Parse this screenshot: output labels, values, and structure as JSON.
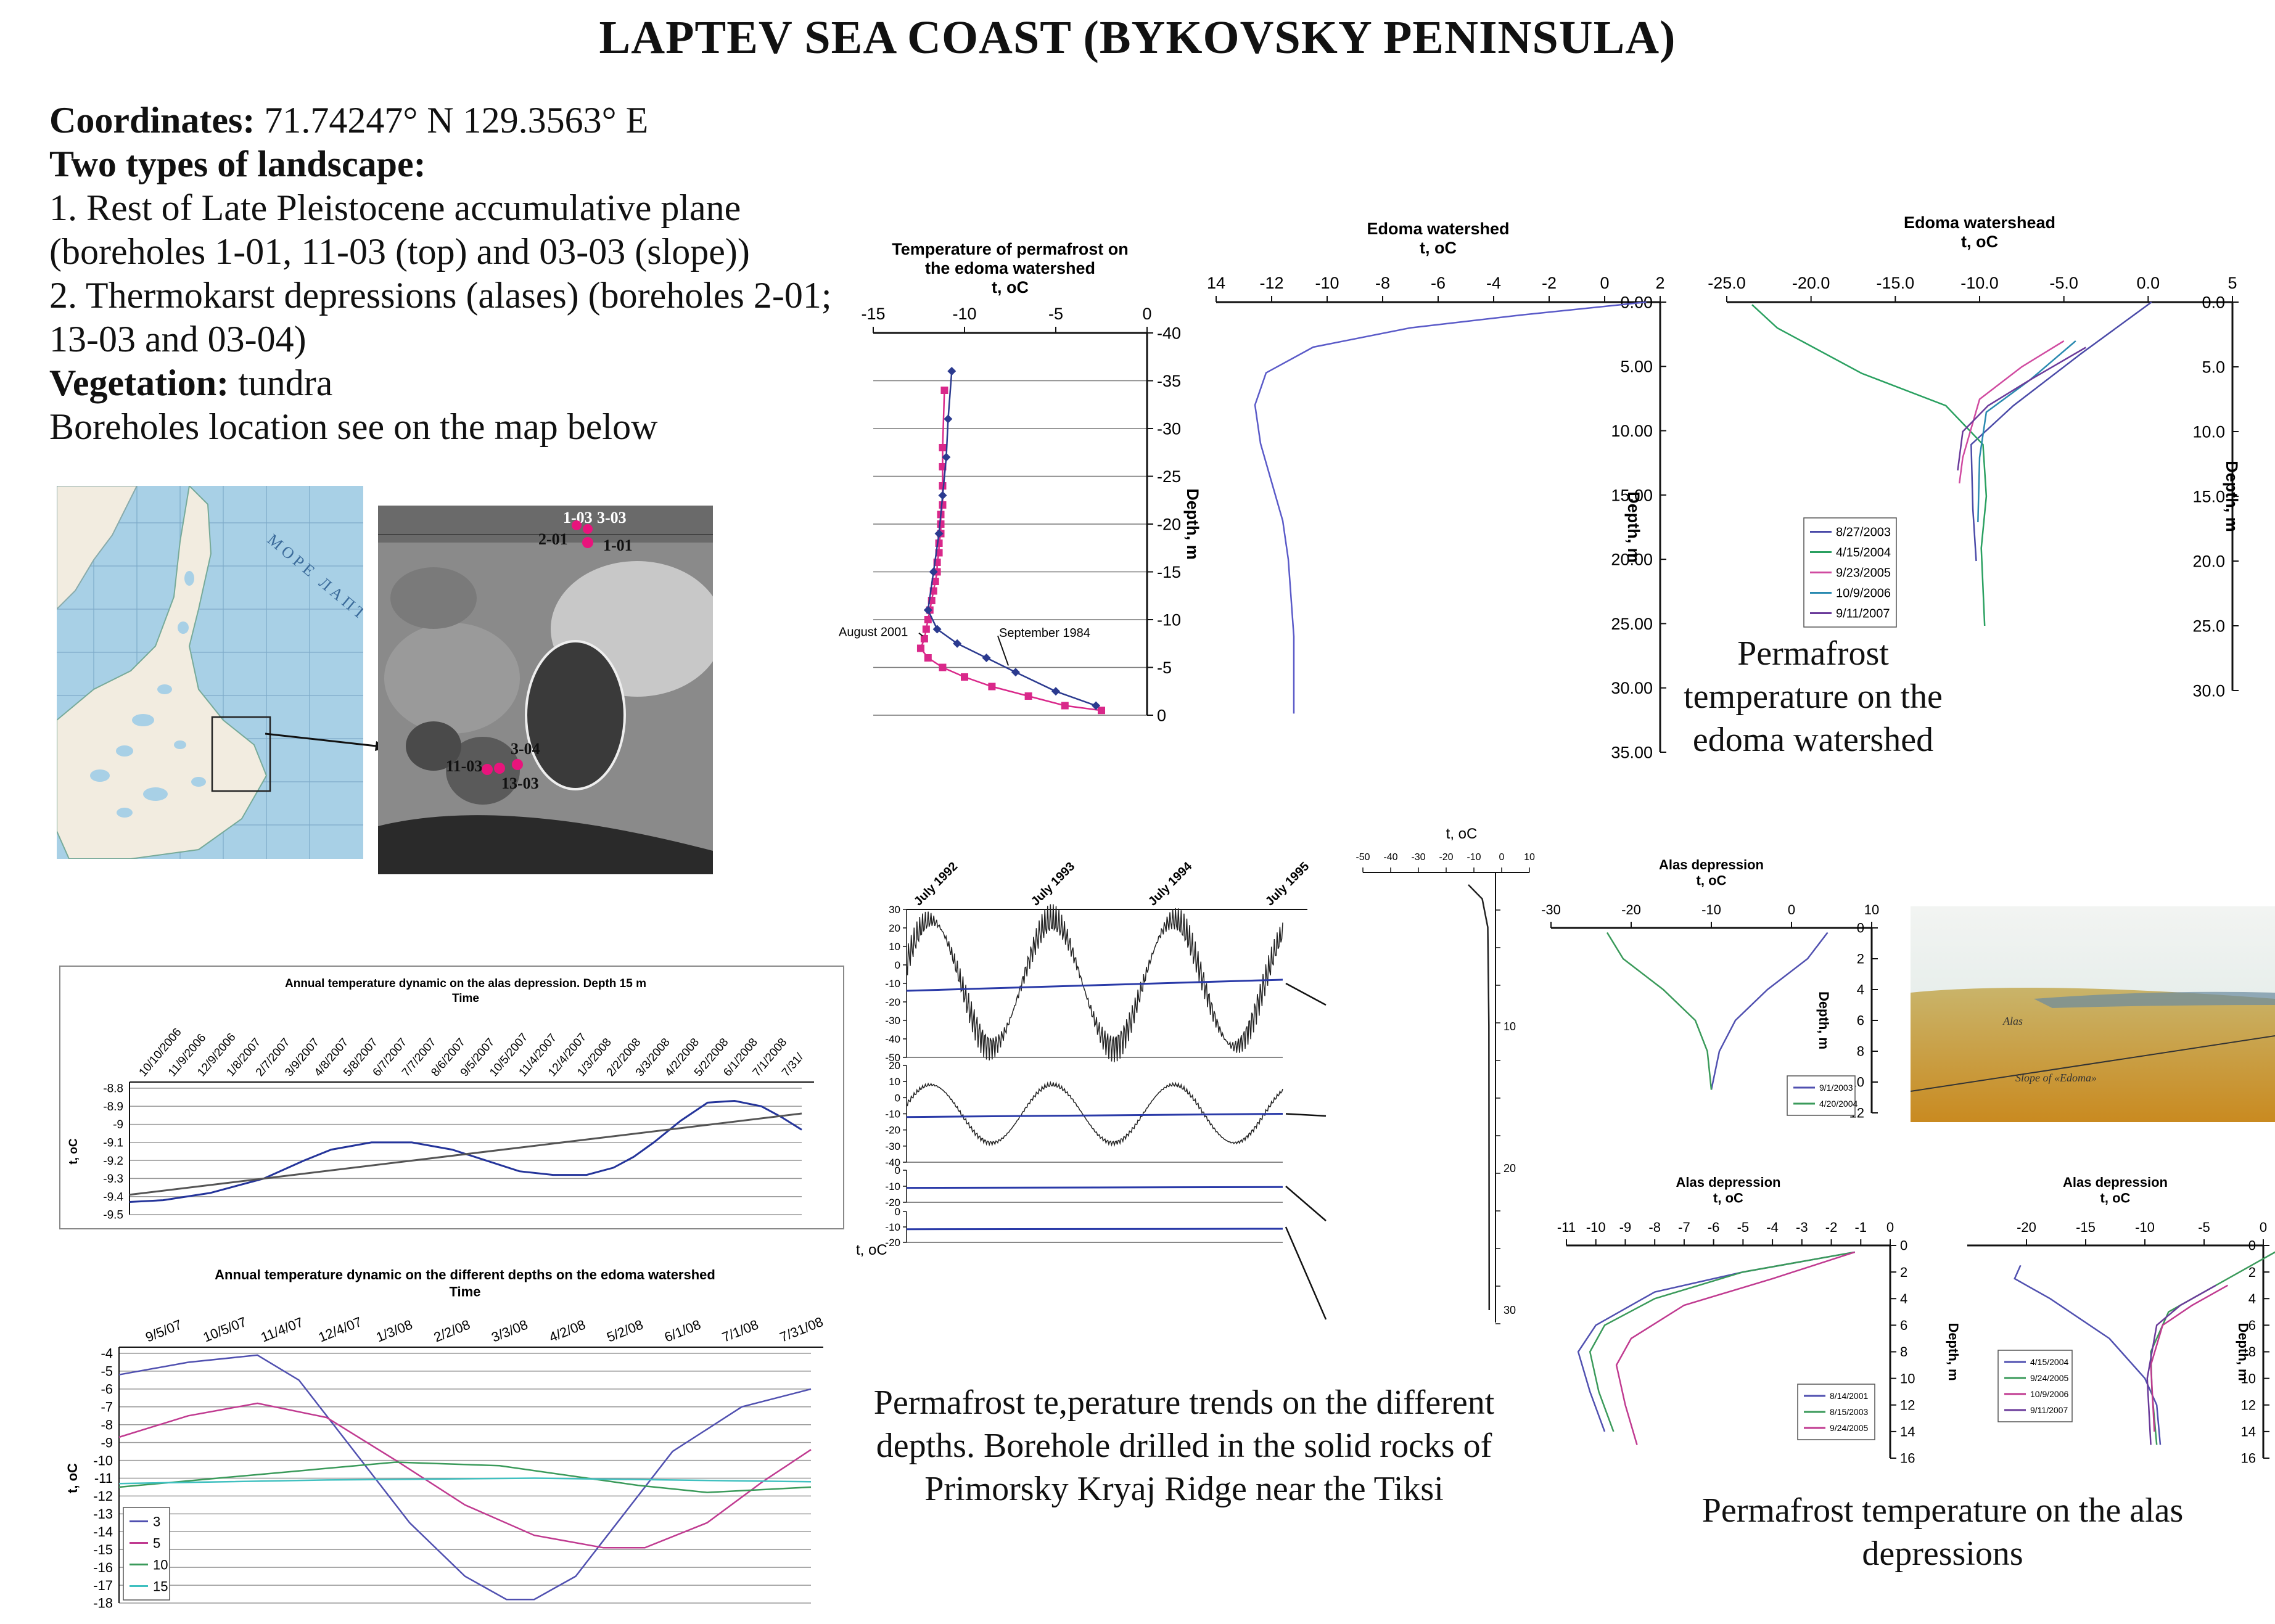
{
  "title": "LAPTEV SEA COAST (BYKOVSKY PENINSULA)",
  "info": {
    "coordinates_label": "Coordinates:",
    "coordinates_value": " 71.74247° N 129.3563° E",
    "landscape_label": "Two types of landscape:",
    "landscape_item_1": "1. Rest of Late Pleistocene accumulative plane (boreholes 1-01, 11-03 (top) and 03-03 (slope))",
    "landscape_item_2": "2. Thermokarst depressions (alases) (boreholes 2-01; 13-03 and 03-04)",
    "vegetation_label": "Vegetation:",
    "vegetation_value": " tundra",
    "boreholes_note": "Boreholes location see on the map below"
  },
  "map": {
    "sea_label": "МОРЕ ЛАПТ",
    "points": [
      "2-01",
      "1-01",
      "1-03",
      "3-03",
      "11-03",
      "3-04",
      "13-03"
    ],
    "colors": {
      "sea": "#a8d0e6",
      "land": "#f2ece0",
      "point": "#e8147c"
    }
  },
  "captions": {
    "edoma": "Permafrost temperature on the edoma watershed",
    "trends": "Permafrost te,perature trends on the different depths. Borehole drilled in the solid rocks of Primorsky Kryaj Ridge near the Tiksi",
    "alas": "Permafrost temperature on the alas depressions"
  },
  "photo": {
    "label_alas": "Alas",
    "label_slope": "Slope of «Edoma»"
  },
  "chart_data": [
    {
      "id": "c1",
      "type": "line",
      "title": "Temperature of permafrost on the edoma watershed",
      "xlabel": "t, oC",
      "ylabel": "Depth, m",
      "xlim": [
        -15,
        0
      ],
      "ylim": [
        -40,
        0
      ],
      "xticks": [
        "-15",
        "-10",
        "-5",
        "0"
      ],
      "yticks": [
        "0",
        "-5",
        "-10",
        "-15",
        "-20",
        "-25",
        "-30",
        "-35",
        "-40"
      ],
      "annotations": [
        "August 2001",
        "September 1984"
      ],
      "series": [
        {
          "name": "August 2001",
          "color": "#d9288a",
          "marker": "square",
          "x": [
            -2.5,
            -4.5,
            -6.5,
            -8.5,
            -10,
            -11.2,
            -12,
            -12.4,
            -12.2,
            -12.1,
            -12,
            -11.9,
            -11.8,
            -11.7,
            -11.6,
            -11.5,
            -11.5,
            -11.4,
            -11.4,
            -11.3,
            -11.3,
            -11.3,
            -11.2,
            -11.2,
            -11.2,
            -11.2,
            -11.1
          ],
          "y": [
            -0.5,
            -1,
            -2,
            -3,
            -4,
            -5,
            -6,
            -7,
            -8,
            -9,
            -10,
            -11,
            -12,
            -13,
            -14,
            -15,
            -16,
            -17,
            -18,
            -19,
            -20,
            -21,
            -22,
            -24,
            -26,
            -28,
            -34
          ]
        },
        {
          "name": "September 1984",
          "color": "#2b3a8f",
          "marker": "diamond",
          "x": [
            -2.8,
            -5,
            -7.2,
            -8.8,
            -10.4,
            -11.5,
            -12,
            -11.7,
            -11.4,
            -11.2,
            -11,
            -10.9,
            -10.7
          ],
          "y": [
            -1,
            -2.5,
            -4.5,
            -6,
            -7.5,
            -9,
            -11,
            -15,
            -19,
            -23,
            -27,
            -31,
            -36
          ]
        }
      ]
    },
    {
      "id": "c2",
      "type": "line",
      "title": "Edoma watershed",
      "xlabel": "t, oC",
      "ylabel": "Depth, m",
      "xlim": [
        -14,
        2
      ],
      "ylim": [
        0,
        35
      ],
      "xticks": [
        "14",
        "-12",
        "-10",
        "-8",
        "-6",
        "-4",
        "-2",
        "0",
        "2"
      ],
      "yticks": [
        "0.00",
        "5.00",
        "10.00",
        "15.00",
        "20.00",
        "25.00",
        "30.00",
        "35.00"
      ],
      "series": [
        {
          "color": "#5a5ac8",
          "x": [
            1.5,
            -3,
            -7,
            -10.5,
            -12.2,
            -12.6,
            -12.4,
            -12,
            -11.6,
            -11.4,
            -11.3,
            -11.2,
            -11.2
          ],
          "y": [
            0,
            1,
            2,
            3.5,
            5.5,
            8,
            11,
            14,
            17,
            20,
            23,
            26,
            32
          ]
        }
      ]
    },
    {
      "id": "c3",
      "type": "line",
      "title": "Edoma watershead",
      "xlabel": "t, oC",
      "ylabel": "Depth, m",
      "xlim": [
        -25,
        5
      ],
      "ylim": [
        0,
        30
      ],
      "xticks": [
        "-25.0",
        "-20.0",
        "-15.0",
        "-10.0",
        "-5.0",
        "0.0",
        "5"
      ],
      "yticks": [
        "0.0",
        "5.0",
        "10.0",
        "15.0",
        "20.0",
        "25.0",
        "30.0"
      ],
      "series": [
        {
          "name": "8/27/2003",
          "color": "#4a4aa8",
          "x": [
            0.2,
            -4,
            -8,
            -10.5,
            -10.4,
            -10.2
          ],
          "y": [
            0,
            4,
            8,
            11,
            16,
            20
          ]
        },
        {
          "name": "4/15/2004",
          "color": "#2aa060",
          "x": [
            -23.5,
            -22,
            -17,
            -12,
            -9.8,
            -9.6,
            -9.9,
            -9.7
          ],
          "y": [
            0.2,
            2,
            5.5,
            8,
            11,
            15,
            19,
            25
          ]
        },
        {
          "name": "9/23/2005",
          "color": "#d04aa0",
          "x": [
            -5,
            -7.5,
            -10,
            -11,
            -11.2
          ],
          "y": [
            3,
            5,
            7.5,
            12,
            14
          ]
        },
        {
          "name": "10/9/2006",
          "color": "#2a8ab0",
          "x": [
            -4.3,
            -7,
            -9.6,
            -10,
            -10.1
          ],
          "y": [
            3,
            6,
            8.5,
            12,
            17
          ]
        },
        {
          "name": "9/11/2007",
          "color": "#6a3a9a",
          "x": [
            -3.7,
            -7,
            -9.5,
            -11,
            -11.3
          ],
          "y": [
            3.5,
            6,
            8,
            10,
            13
          ]
        }
      ]
    },
    {
      "id": "c4",
      "type": "line",
      "title": "Annual temperature dynamic on the alas depression. Depth 15 m",
      "xlabel": "Time",
      "ylabel": "t, oC",
      "ylim": [
        -9.5,
        -8.8
      ],
      "yticks": [
        "-8.8",
        "-8.9",
        "-9",
        "-9.1",
        "-9.2",
        "-9.3",
        "-9.4",
        "-9.5"
      ],
      "categories": [
        "10/10/2006",
        "11/9/2006",
        "12/9/2006",
        "1/8/2007",
        "2/7/2007",
        "3/9/2007",
        "4/8/2007",
        "5/8/2007",
        "6/7/2007",
        "7/7/2007",
        "8/6/2007",
        "9/5/2007",
        "10/5/2007",
        "11/4/2007",
        "12/4/2007",
        "1/3/2008",
        "2/2/2008",
        "3/3/2008",
        "4/2/2008",
        "5/2/2008",
        "6/1/2008",
        "7/1/2008",
        "7/31/"
      ],
      "series": [
        {
          "color": "#24349a",
          "x": [
            0,
            0.05,
            0.12,
            0.2,
            0.26,
            0.3,
            0.36,
            0.42,
            0.48,
            0.53,
            0.58,
            0.63,
            0.68,
            0.72,
            0.75,
            0.78,
            0.82,
            0.86,
            0.9,
            0.94,
            0.97,
            1.0
          ],
          "values": [
            -9.43,
            -9.42,
            -9.38,
            -9.3,
            -9.2,
            -9.14,
            -9.1,
            -9.1,
            -9.14,
            -9.2,
            -9.26,
            -9.28,
            -9.28,
            -9.24,
            -9.18,
            -9.1,
            -8.98,
            -8.88,
            -8.87,
            -8.9,
            -8.96,
            -9.03
          ]
        },
        {
          "color": "#555555",
          "x": [
            0,
            1
          ],
          "values": [
            -9.39,
            -8.94
          ]
        }
      ]
    },
    {
      "id": "c5",
      "type": "line",
      "title": "Annual temperature dynamic on the different depths on the edoma watershed",
      "xlabel": "Time",
      "ylabel": "t, oC",
      "ylim": [
        -18,
        -4
      ],
      "yticks": [
        "-4",
        "-5",
        "-6",
        "-7",
        "-8",
        "-9",
        "-10",
        "-11",
        "-12",
        "-13",
        "-14",
        "-15",
        "-16",
        "-17",
        "-18"
      ],
      "categories": [
        "9/5/07",
        "10/5/07",
        "11/4/07",
        "12/4/07",
        "1/3/08",
        "2/2/08",
        "3/3/08",
        "4/2/08",
        "5/2/08",
        "6/1/08",
        "7/1/08",
        "7/31/08"
      ],
      "series": [
        {
          "name": "3",
          "color": "#5050b0",
          "x": [
            0,
            0.1,
            0.2,
            0.26,
            0.33,
            0.42,
            0.5,
            0.56,
            0.6,
            0.66,
            0.72,
            0.8,
            0.9,
            1.0
          ],
          "values": [
            -5.2,
            -4.5,
            -4.1,
            -5.5,
            -9,
            -13.5,
            -16.5,
            -17.8,
            -17.8,
            -16.5,
            -13.5,
            -9.5,
            -7,
            -6
          ]
        },
        {
          "name": "5",
          "color": "#c03a90",
          "x": [
            0,
            0.1,
            0.2,
            0.3,
            0.4,
            0.5,
            0.6,
            0.7,
            0.76,
            0.85,
            0.93,
            1.0
          ],
          "values": [
            -8.7,
            -7.5,
            -6.8,
            -7.6,
            -10,
            -12.5,
            -14.2,
            -14.9,
            -14.9,
            -13.5,
            -11.2,
            -9.4
          ]
        },
        {
          "name": "10",
          "color": "#3a9a5a",
          "x": [
            0,
            0.2,
            0.4,
            0.55,
            0.75,
            0.85,
            1.0
          ],
          "values": [
            -11.5,
            -10.8,
            -10.1,
            -10.3,
            -11.4,
            -11.8,
            -11.5
          ]
        },
        {
          "name": "15",
          "color": "#40c0c0",
          "x": [
            0,
            0.3,
            0.6,
            1.0
          ],
          "values": [
            -11.3,
            -11.1,
            -11.0,
            -11.2
          ]
        }
      ]
    },
    {
      "id": "c6",
      "type": "line",
      "title": "",
      "xlabel": "t, oC",
      "categories": [
        "July 1992",
        "July 1993",
        "July 1994",
        "July 1995"
      ],
      "panels": [
        {
          "ylim": [
            -50,
            30
          ],
          "yticks": [
            "30",
            "20",
            "10",
            "0",
            "-10",
            "-20",
            "-30",
            "-40",
            "-50"
          ]
        },
        {
          "ylim": [
            -40,
            20
          ],
          "yticks": [
            "20",
            "10",
            "0",
            "-10",
            "-20",
            "-30",
            "-40"
          ]
        },
        {
          "ylim": [
            -20,
            0
          ],
          "yticks": [
            "0",
            "-10",
            "-20"
          ]
        },
        {
          "ylim": [
            -20,
            0
          ],
          "yticks": [
            "0",
            "-10",
            "-20"
          ]
        }
      ]
    },
    {
      "id": "c7",
      "type": "line",
      "title": "",
      "xlabel": "t, oC",
      "xticks": [
        "-50",
        "-40",
        "-30",
        "-20",
        "-10",
        "0",
        "10"
      ],
      "yticks": [
        "10",
        "20",
        "30"
      ],
      "xlim": [
        -50,
        10
      ],
      "ylim": [
        0,
        30
      ],
      "series": [
        {
          "color": "#222222",
          "x": [
            -12,
            -7,
            -5,
            -4.6,
            -4.5
          ],
          "y": [
            0,
            1,
            3,
            10,
            30
          ]
        }
      ]
    },
    {
      "id": "c8",
      "type": "line",
      "title": "Alas depression",
      "xlabel": "t, oC",
      "ylabel": "Depth, m",
      "xlim": [
        -30,
        10
      ],
      "ylim": [
        0,
        12
      ],
      "xticks": [
        "-30",
        "-20",
        "-10",
        "0",
        "10"
      ],
      "yticks": [
        "0",
        "2",
        "4",
        "6",
        "8",
        "10",
        "12"
      ],
      "series": [
        {
          "name": "9/1/2003",
          "color": "#5050b0",
          "x": [
            4.5,
            2,
            -3,
            -7,
            -9,
            -10
          ],
          "y": [
            0.3,
            2,
            4,
            6,
            8,
            10.5
          ]
        },
        {
          "name": "4/20/2004",
          "color": "#3a9a5a",
          "x": [
            -23,
            -21,
            -16,
            -12,
            -10.5,
            -10
          ],
          "y": [
            0.3,
            2,
            4,
            6,
            8,
            10.5
          ]
        }
      ]
    },
    {
      "id": "c9",
      "type": "line",
      "title": "Alas depression",
      "xlabel": "t, oC",
      "ylabel": "Depth, m",
      "xlim": [
        -11,
        0
      ],
      "ylim": [
        0,
        16
      ],
      "xticks": [
        "-11",
        "-10",
        "-9",
        "-8",
        "-7",
        "-6",
        "-5",
        "-4",
        "-3",
        "-2",
        "-1",
        "0"
      ],
      "yticks": [
        "0",
        "2",
        "4",
        "6",
        "8",
        "10",
        "12",
        "14",
        "16"
      ],
      "series": [
        {
          "name": "8/14/2001",
          "color": "#5050b0",
          "x": [
            -1.2,
            -5,
            -8,
            -10,
            -10.6,
            -10.2,
            -9.7
          ],
          "y": [
            0.5,
            2,
            3.5,
            6,
            8,
            11,
            14
          ]
        },
        {
          "name": "8/15/2003",
          "color": "#3a9a5a",
          "x": [
            -1.2,
            -5,
            -8,
            -9.7,
            -10.2,
            -9.9,
            -9.4
          ],
          "y": [
            0.5,
            2,
            4,
            6,
            8,
            11,
            14
          ]
        },
        {
          "name": "9/24/2005",
          "color": "#c03a90",
          "x": [
            -1.2,
            -4,
            -7,
            -8.8,
            -9.3,
            -9.0,
            -8.6
          ],
          "y": [
            0.5,
            2.5,
            4.5,
            7,
            9,
            12,
            15
          ]
        }
      ]
    },
    {
      "id": "c10",
      "type": "line",
      "title": "Alas depression",
      "xlabel": "t, oC",
      "ylabel": "Depth, m",
      "xlim": [
        -25,
        0
      ],
      "ylim": [
        0,
        16
      ],
      "xticks": [
        "-20",
        "-15",
        "-10",
        "-5",
        "0"
      ],
      "yticks": [
        "0",
        "2",
        "4",
        "6",
        "8",
        "10",
        "12",
        "14",
        "16"
      ],
      "series": [
        {
          "name": "4/15/2004",
          "color": "#5050b0",
          "x": [
            -20.5,
            -21,
            -18,
            -13,
            -10,
            -9,
            -8.7
          ],
          "y": [
            1.5,
            2.5,
            4,
            7,
            10,
            12,
            15
          ]
        },
        {
          "name": "9/24/2005",
          "color": "#3a9a5a",
          "x": [
            2,
            -4,
            -8,
            -9.5,
            -9.4,
            -9
          ],
          "y": [
            0,
            3,
            5,
            8,
            11,
            15
          ]
        },
        {
          "name": "10/9/2006",
          "color": "#c03a90",
          "x": [
            -3,
            -6,
            -8.5,
            -9.5,
            -9.2
          ],
          "y": [
            3,
            4.5,
            6,
            9,
            14
          ]
        },
        {
          "name": "9/11/2007",
          "color": "#6a3a9a",
          "x": [
            -4,
            -7,
            -9,
            -9.8,
            -9.5
          ],
          "y": [
            3,
            4.5,
            6,
            10,
            15
          ]
        }
      ]
    }
  ]
}
